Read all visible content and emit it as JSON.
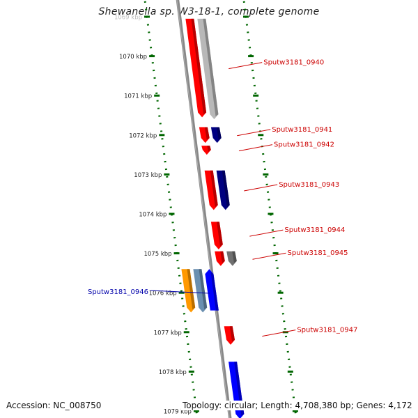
{
  "title": "Shewanella sp. W3-18-1, complete genome",
  "accession": "Accession: NC_008750",
  "topology": "Topology: circular; Length: 4,708,380 bp; Genes: 4,172",
  "colors": {
    "forward_gene": "#ff0000",
    "reverse_gene": "#000080",
    "pseudo_gene": "#b8b8b8",
    "dark_gray_gene": "#707070",
    "orange_gene": "#ff9900",
    "steel_gene": "#6a8fb0",
    "blue_gene": "#0000ff",
    "tick_green": "#006600",
    "red_label": "#cc0000",
    "blue_label": "#0000aa",
    "axis_gray": "#888888"
  },
  "scale": {
    "unit": "kbp",
    "ticks": [
      {
        "pos": 1069,
        "label": "1069 kbp"
      },
      {
        "pos": 1070,
        "label": "1070 kbp"
      },
      {
        "pos": 1071,
        "label": "1071 kbp"
      },
      {
        "pos": 1072,
        "label": "1072 kbp"
      },
      {
        "pos": 1073,
        "label": "1073 kbp"
      },
      {
        "pos": 1074,
        "label": "1074 kbp"
      },
      {
        "pos": 1075,
        "label": "1075 kbp"
      },
      {
        "pos": 1076,
        "label": "1076 kbp"
      },
      {
        "pos": 1077,
        "label": "1077 kbp"
      },
      {
        "pos": 1078,
        "label": "1078 kbp"
      },
      {
        "pos": 1079,
        "label": "1079 kbp"
      }
    ]
  },
  "genes": [
    {
      "name": "Sputw3181_0940",
      "start": 1069.05,
      "end": 1071.55,
      "lane": 0,
      "color": "forward_gene",
      "labeled": true
    },
    {
      "name": "",
      "start": 1069.05,
      "end": 1071.6,
      "lane": 1,
      "color": "pseudo_gene",
      "labeled": false
    },
    {
      "name": "Sputw3181_0941",
      "start": 1071.8,
      "end": 1072.2,
      "lane": 0,
      "color": "forward_gene",
      "labeled": true
    },
    {
      "name": "",
      "start": 1071.8,
      "end": 1072.2,
      "lane": 1,
      "color": "reverse_gene",
      "labeled": false
    },
    {
      "name": "Sputw3181_0942",
      "start": 1072.27,
      "end": 1072.5,
      "lane": 0,
      "color": "forward_gene",
      "labeled": true
    },
    {
      "name": "Sputw3181_0943",
      "start": 1072.9,
      "end": 1073.9,
      "lane": 0,
      "color": "forward_gene",
      "labeled": true
    },
    {
      "name": "",
      "start": 1072.9,
      "end": 1073.9,
      "lane": 1,
      "color": "reverse_gene",
      "labeled": false
    },
    {
      "name": "Sputw3181_0944",
      "start": 1074.2,
      "end": 1074.9,
      "lane": 0,
      "color": "forward_gene",
      "labeled": true
    },
    {
      "name": "Sputw3181_0945",
      "start": 1074.95,
      "end": 1075.32,
      "lane": 0,
      "color": "forward_gene",
      "labeled": true
    },
    {
      "name": "",
      "start": 1074.95,
      "end": 1075.32,
      "lane": 1,
      "color": "dark_gray_gene",
      "labeled": false
    },
    {
      "name": "",
      "start": 1075.4,
      "end": 1076.5,
      "lane": -3,
      "color": "orange_gene",
      "labeled": false
    },
    {
      "name": "",
      "start": 1075.4,
      "end": 1076.5,
      "lane": -2,
      "color": "steel_gene",
      "labeled": false
    },
    {
      "name": "Sputw3181_0946",
      "start": 1075.4,
      "end": 1076.45,
      "lane": -1,
      "color": "blue_gene",
      "labeled": true
    },
    {
      "name": "Sputw3181_0947",
      "start": 1076.85,
      "end": 1077.32,
      "lane": 0,
      "color": "forward_gene",
      "labeled": true
    },
    {
      "name": "",
      "start": 1077.75,
      "end": 1079.2,
      "lane": 0,
      "color": "blue_gene",
      "labeled": false
    }
  ]
}
